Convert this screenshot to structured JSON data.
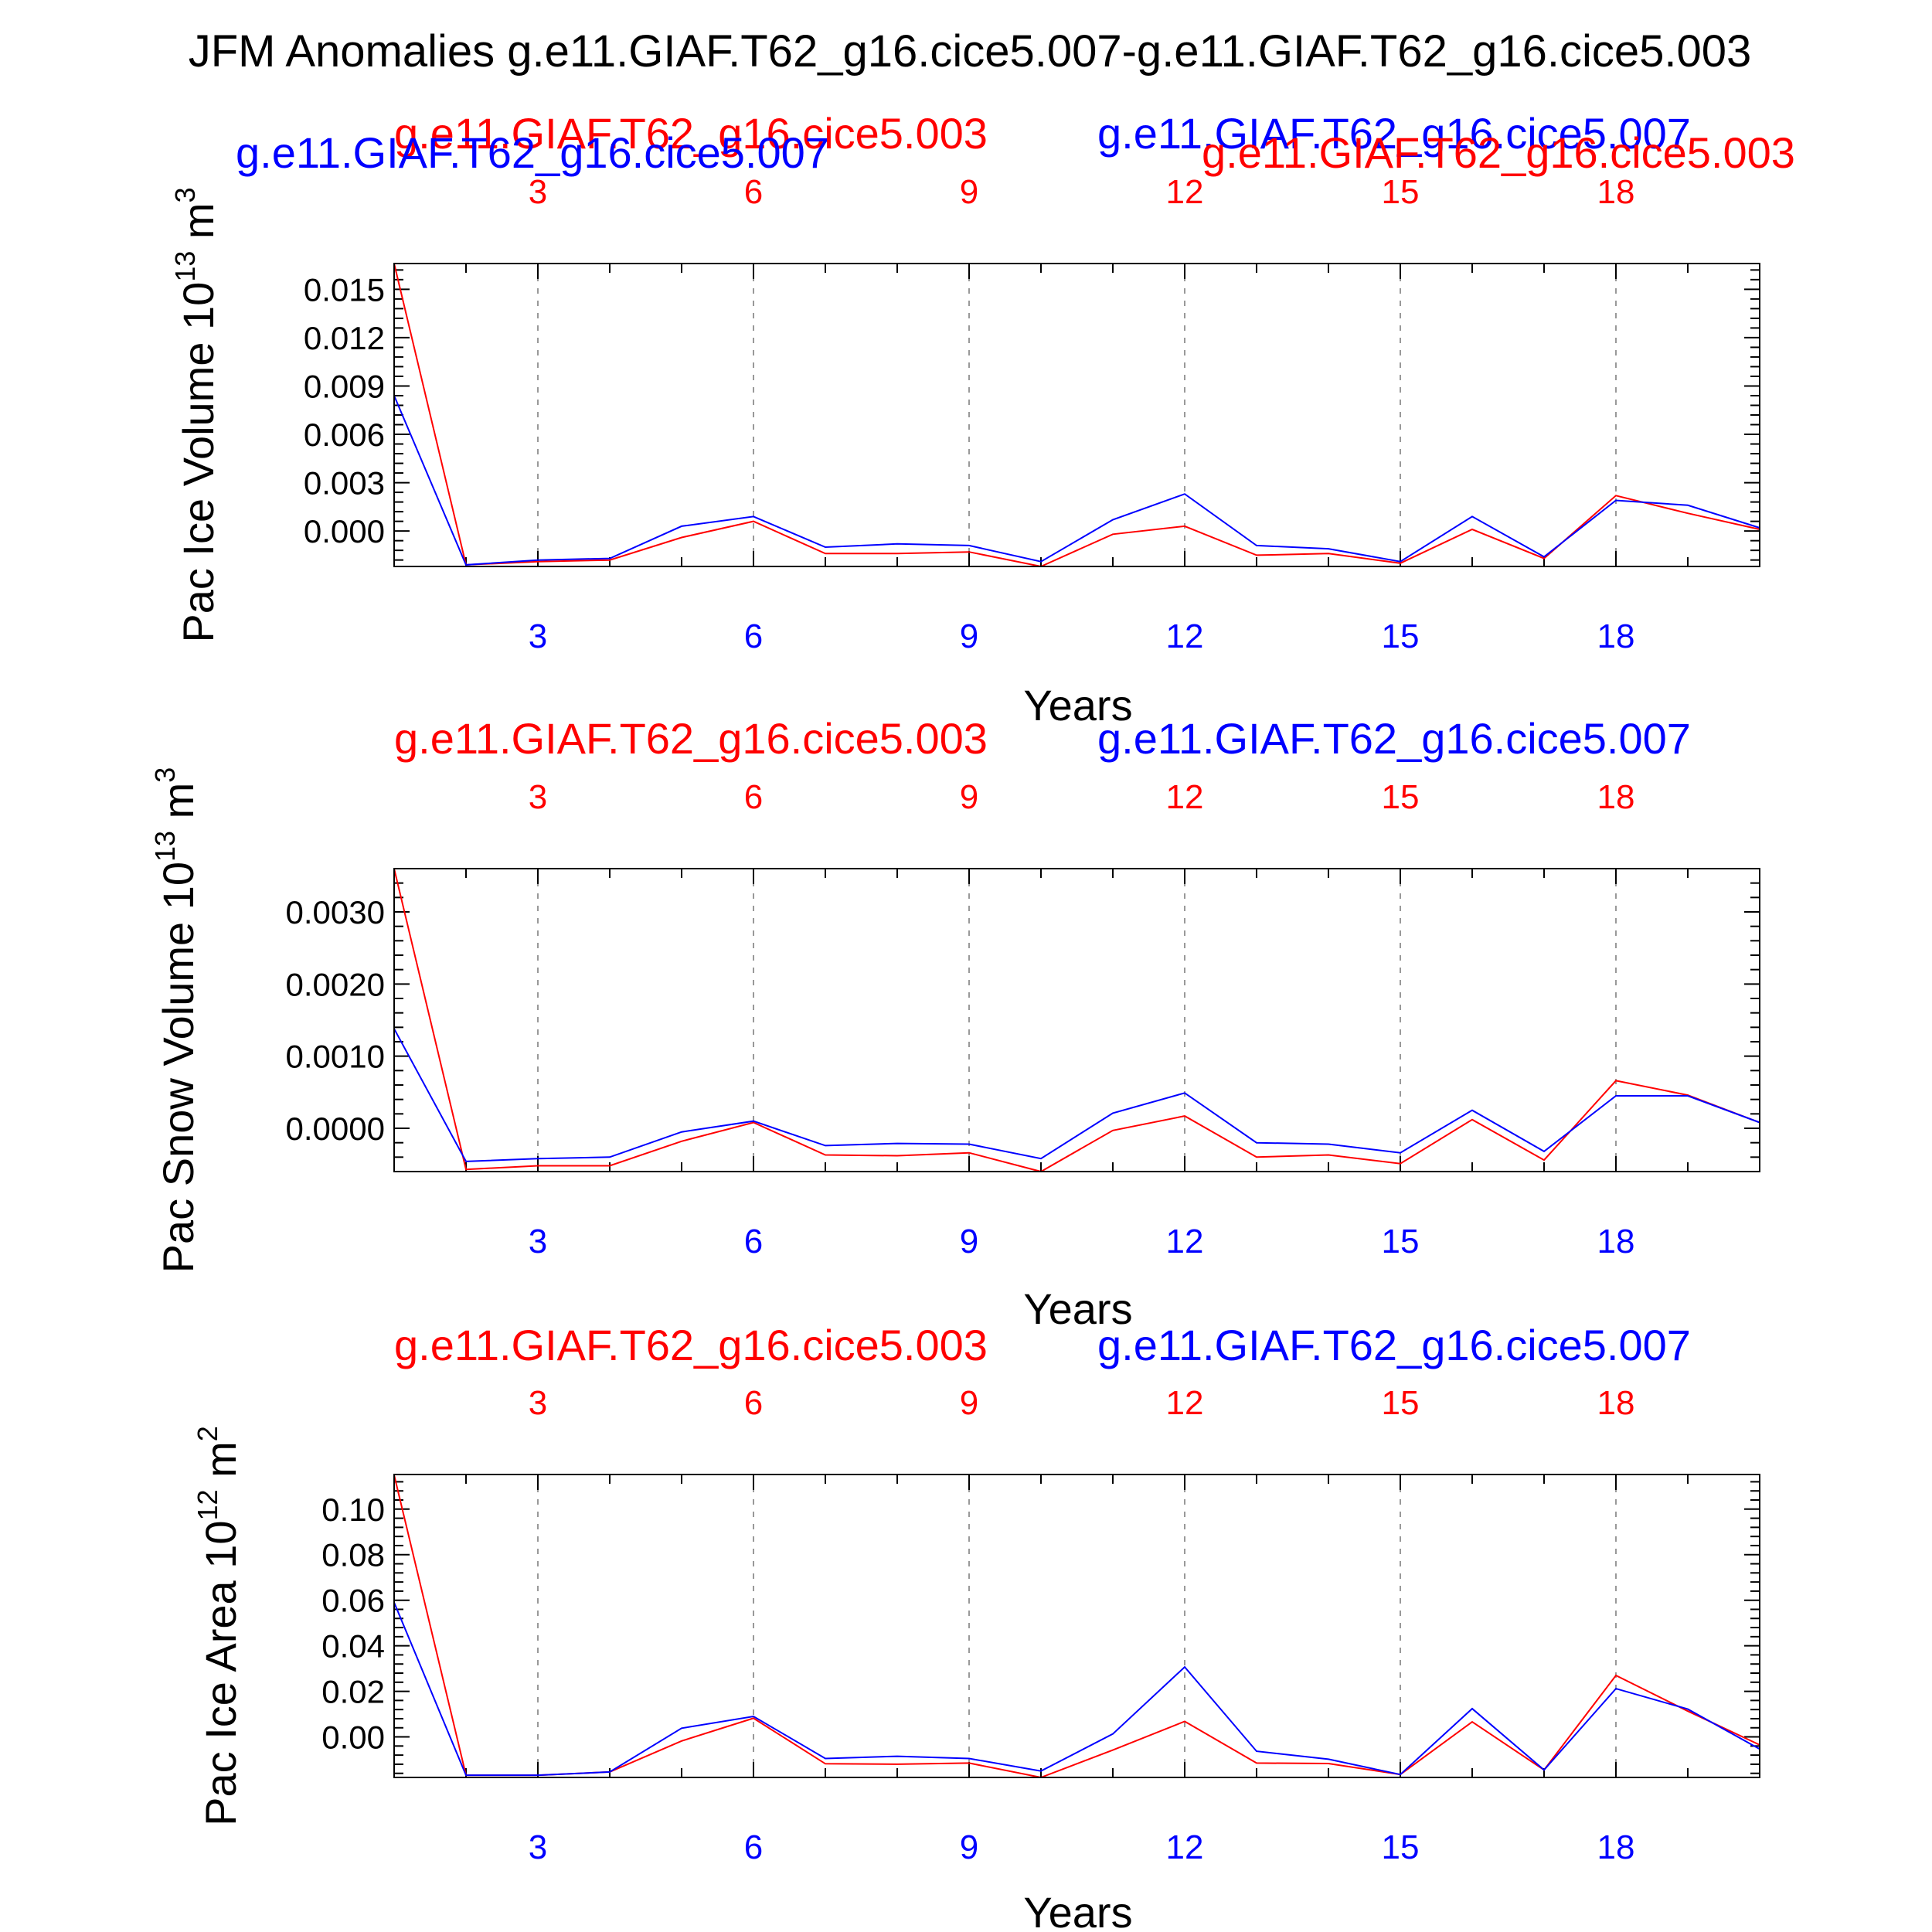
{
  "title": "JFM Anomalies g.e11.GIAF.T62_g16.cice5.007-g.e11.GIAF.T62_g16.cice5.003",
  "colors": {
    "red": "#ff0000",
    "blue": "#0000ff",
    "frame": "#000000",
    "grid": "#999999"
  },
  "chart_data": [
    {
      "type": "line",
      "ylabel_main": "Pac Ice Volume 10",
      "ylabel_exp": "13",
      "ylabel_unit": " m",
      "ylabel_unit_exp": "3",
      "xlabel": "Years",
      "label_red": "g.e11.GIAF.T62_g16.cice5.003",
      "label_blue": "g.e11.GIAF.T62_g16.cice5.007",
      "label_red_2": "g.e11.GIAF.T62_g16.cice5.003",
      "label_blue_2": "g.e11.GIAF.T62_g16.cice5.007",
      "xticks": [
        "3",
        "6",
        "9",
        "12",
        "15",
        "18"
      ],
      "xtick_values": [
        3,
        6,
        9,
        12,
        15,
        18
      ],
      "xlim": [
        1,
        20
      ],
      "ylim": [
        -0.0022,
        0.0166
      ],
      "yticks": [
        "0.000",
        "0.003",
        "0.006",
        "0.009",
        "0.012",
        "0.015"
      ],
      "ytick_values": [
        0,
        0.003,
        0.006,
        0.009,
        0.012,
        0.015
      ],
      "yminor_step": 0.0006,
      "x": [
        1,
        2,
        3,
        4,
        5,
        6,
        7,
        8,
        9,
        10,
        11,
        12,
        13,
        14,
        15,
        16,
        17,
        18,
        19,
        20
      ],
      "series": [
        {
          "color": "red",
          "values": [
            0.0166,
            -0.0021,
            -0.0019,
            -0.0018,
            -0.0004,
            0.0006,
            -0.0014,
            -0.0014,
            -0.0013,
            -0.0022,
            -0.0002,
            0.0003,
            -0.0015,
            -0.0014,
            -0.002,
            0.0001,
            -0.0017,
            0.0022,
            0.0011,
            0.0001
          ]
        },
        {
          "color": "blue",
          "values": [
            0.0084,
            -0.0021,
            -0.0018,
            -0.0017,
            0.0003,
            0.0009,
            -0.001,
            -0.0008,
            -0.0009,
            -0.0019,
            0.0007,
            0.0023,
            -0.0009,
            -0.0011,
            -0.0019,
            0.0009,
            -0.0016,
            0.0019,
            0.0016,
            0.0002
          ]
        }
      ]
    },
    {
      "type": "line",
      "ylabel_main": "Pac Snow Volume 10",
      "ylabel_exp": "13",
      "ylabel_unit": " m",
      "ylabel_unit_exp": "3",
      "xlabel": "Years",
      "label_red": "g.e11.GIAF.T62_g16.cice5.003",
      "label_blue": "g.e11.GIAF.T62_g16.cice5.007",
      "xticks": [
        "3",
        "6",
        "9",
        "12",
        "15",
        "18"
      ],
      "xtick_values": [
        3,
        6,
        9,
        12,
        15,
        18
      ],
      "xlim": [
        1,
        20
      ],
      "ylim": [
        -0.0006,
        0.0036
      ],
      "yticks": [
        "0.0000",
        "0.0010",
        "0.0020",
        "0.0030"
      ],
      "ytick_values": [
        0,
        0.001,
        0.002,
        0.003
      ],
      "yminor_step": 0.0002,
      "x": [
        1,
        2,
        3,
        4,
        5,
        6,
        7,
        8,
        9,
        10,
        11,
        12,
        13,
        14,
        15,
        16,
        17,
        18,
        19,
        20
      ],
      "series": [
        {
          "color": "red",
          "values": [
            0.0036,
            -0.00057,
            -0.00052,
            -0.00052,
            -0.00018,
            8e-05,
            -0.00037,
            -0.00038,
            -0.00034,
            -0.0006,
            -3e-05,
            0.00017,
            -0.0004,
            -0.00037,
            -0.00049,
            0.00012,
            -0.00044,
            0.00066,
            0.00046,
            8e-05
          ]
        },
        {
          "color": "blue",
          "values": [
            0.00138,
            -0.00046,
            -0.00042,
            -0.0004,
            -5e-05,
            0.0001,
            -0.00024,
            -0.00021,
            -0.00022,
            -0.00042,
            0.00021,
            0.00049,
            -0.0002,
            -0.00022,
            -0.00034,
            0.00025,
            -0.00032,
            0.00045,
            0.00045,
            8e-05
          ]
        }
      ]
    },
    {
      "type": "line",
      "ylabel_main": "Pac Ice Area 10",
      "ylabel_exp": "12",
      "ylabel_unit": " m",
      "ylabel_unit_exp": "2",
      "xlabel": "Years",
      "label_red": "g.e11.GIAF.T62_g16.cice5.003",
      "label_blue": "g.e11.GIAF.T62_g16.cice5.007",
      "xticks": [
        "3",
        "6",
        "9",
        "12",
        "15",
        "18"
      ],
      "xtick_values": [
        3,
        6,
        9,
        12,
        15,
        18
      ],
      "xlim": [
        1,
        20
      ],
      "ylim": [
        -0.0178,
        0.1152
      ],
      "yticks": [
        "0.00",
        "0.02",
        "0.04",
        "0.06",
        "0.08",
        "0.10"
      ],
      "ytick_values": [
        0,
        0.02,
        0.04,
        0.06,
        0.08,
        0.1
      ],
      "yminor_step": 0.004,
      "x": [
        1,
        2,
        3,
        4,
        5,
        6,
        7,
        8,
        9,
        10,
        11,
        12,
        13,
        14,
        15,
        16,
        17,
        18,
        19,
        20
      ],
      "series": [
        {
          "color": "red",
          "values": [
            0.115,
            -0.0168,
            -0.0168,
            -0.0154,
            -0.0018,
            0.0082,
            -0.0118,
            -0.012,
            -0.0115,
            -0.0178,
            -0.0058,
            0.0068,
            -0.0115,
            -0.0117,
            -0.0165,
            0.0066,
            -0.0145,
            0.027,
            0.0113,
            -0.0035
          ]
        },
        {
          "color": "blue",
          "values": [
            0.059,
            -0.0168,
            -0.0168,
            -0.0154,
            0.0038,
            0.009,
            -0.0095,
            -0.0085,
            -0.0095,
            -0.015,
            0.0013,
            0.0307,
            -0.0063,
            -0.0098,
            -0.0165,
            0.0124,
            -0.0145,
            0.0212,
            0.0122,
            -0.0053
          ]
        }
      ]
    }
  ]
}
